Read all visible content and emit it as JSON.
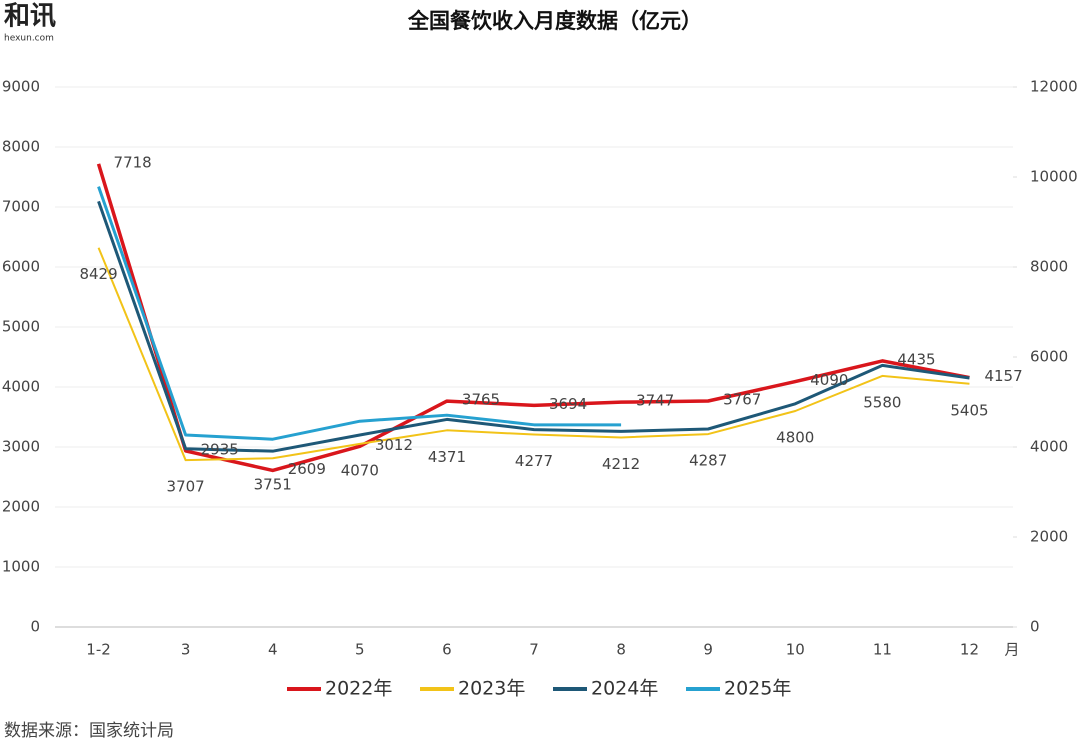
{
  "chart_data": {
    "type": "line",
    "title": "全国餐饮收入月度数据（亿元）",
    "logo": "和讯",
    "logo_subtitle": "hexun.com",
    "source": "数据来源：国家统计局",
    "x_label": "月",
    "categories": [
      "1-2",
      "3",
      "4",
      "5",
      "6",
      "7",
      "8",
      "9",
      "10",
      "11",
      "12"
    ],
    "ylim": [
      0,
      9000
    ],
    "yticks": [
      0,
      1000,
      2000,
      3000,
      4000,
      5000,
      6000,
      7000,
      8000,
      9000
    ],
    "y2lim": [
      0,
      12000
    ],
    "y2ticks": [
      0,
      2000,
      4000,
      6000,
      8000,
      10000,
      12000
    ],
    "grid": true,
    "legend": "bottom",
    "series": [
      {
        "name": "2022年",
        "color": "#d9161c",
        "width": 3.5,
        "data_labels": true,
        "axis": "y",
        "values": [
          7718,
          2935,
          2609,
          3012,
          3765,
          3694,
          3747,
          3767,
          4090,
          4435,
          4157
        ]
      },
      {
        "name": "2023年",
        "color": "#f2c318",
        "width": 2,
        "data_labels": true,
        "axis": "y2",
        "values": [
          8429,
          3707,
          3751,
          4070,
          4371,
          4277,
          4212,
          4287,
          4800,
          5580,
          5405
        ]
      },
      {
        "name": "2024年",
        "color": "#1e5877",
        "width": 3,
        "data_labels": false,
        "axis": "y2",
        "values": [
          9457,
          3960,
          3907,
          4267,
          4613,
          4387,
          4347,
          4400,
          4960,
          5813,
          5533
        ]
      },
      {
        "name": "2025年",
        "color": "#26a1d0",
        "width": 3,
        "data_labels": false,
        "axis": "y2",
        "values": [
          9787,
          4267,
          4173,
          4573,
          4707,
          4493,
          4493,
          null,
          null,
          null,
          null
        ]
      }
    ]
  }
}
